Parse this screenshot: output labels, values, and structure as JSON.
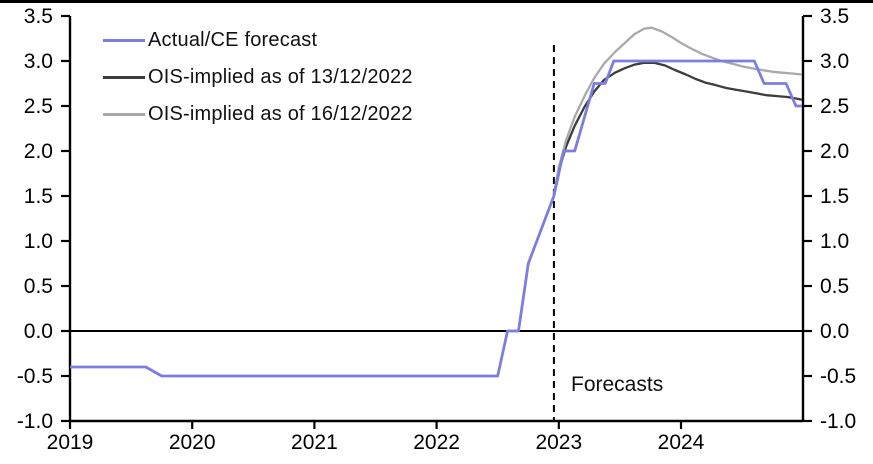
{
  "chart_data": {
    "type": "line",
    "title": "",
    "x_axis": {
      "ticks": [
        "2019",
        "2020",
        "2021",
        "2022",
        "2023",
        "2024"
      ],
      "range": [
        2019,
        2025
      ],
      "grid": false
    },
    "y_axis_left": {
      "ticks": [
        3.5,
        3.0,
        2.5,
        2.0,
        1.5,
        1.0,
        0.5,
        0.0,
        -0.5,
        -1.0
      ],
      "range": [
        -1.0,
        3.5
      ]
    },
    "y_axis_right": {
      "ticks": [
        3.5,
        3.0,
        2.5,
        2.0,
        1.5,
        1.0,
        0.5,
        0.0,
        -0.5,
        -1.0
      ],
      "range": [
        -1.0,
        3.5
      ]
    },
    "legend_position": "top-left",
    "axis_color": "#000000",
    "zero_line": 0.0,
    "series": [
      {
        "name": "Actual/CE forecast",
        "color": "#7d7de1",
        "points": [
          [
            2019.0,
            -0.4
          ],
          [
            2019.62,
            -0.4
          ],
          [
            2019.75,
            -0.5
          ],
          [
            2022.5,
            -0.5
          ],
          [
            2022.58,
            0.0
          ],
          [
            2022.67,
            0.0
          ],
          [
            2022.75,
            0.75
          ],
          [
            2022.96,
            1.5
          ],
          [
            2023.04,
            2.0
          ],
          [
            2023.13,
            2.0
          ],
          [
            2023.29,
            2.75
          ],
          [
            2023.38,
            2.75
          ],
          [
            2023.45,
            3.0
          ],
          [
            2024.6,
            3.0
          ],
          [
            2024.68,
            2.75
          ],
          [
            2024.86,
            2.75
          ],
          [
            2024.94,
            2.5
          ],
          [
            2024.99,
            2.5
          ]
        ]
      },
      {
        "name": "OIS-implied as of 13/12/2022",
        "color": "#3d3d3d",
        "points": [
          [
            2022.96,
            1.52
          ],
          [
            2023.0,
            1.78
          ],
          [
            2023.06,
            2.05
          ],
          [
            2023.13,
            2.28
          ],
          [
            2023.21,
            2.49
          ],
          [
            2023.29,
            2.66
          ],
          [
            2023.37,
            2.79
          ],
          [
            2023.46,
            2.87
          ],
          [
            2023.54,
            2.92
          ],
          [
            2023.62,
            2.96
          ],
          [
            2023.7,
            2.98
          ],
          [
            2023.78,
            2.98
          ],
          [
            2023.87,
            2.95
          ],
          [
            2023.95,
            2.9
          ],
          [
            2024.04,
            2.85
          ],
          [
            2024.12,
            2.8
          ],
          [
            2024.2,
            2.76
          ],
          [
            2024.29,
            2.73
          ],
          [
            2024.37,
            2.7
          ],
          [
            2024.45,
            2.68
          ],
          [
            2024.54,
            2.66
          ],
          [
            2024.62,
            2.64
          ],
          [
            2024.7,
            2.62
          ],
          [
            2024.79,
            2.61
          ],
          [
            2024.87,
            2.6
          ],
          [
            2024.95,
            2.58
          ],
          [
            2024.99,
            2.57
          ]
        ]
      },
      {
        "name": "OIS-implied as of 16/12/2022",
        "color": "#a9a9a9",
        "points": [
          [
            2022.96,
            1.52
          ],
          [
            2023.0,
            1.82
          ],
          [
            2023.06,
            2.12
          ],
          [
            2023.13,
            2.38
          ],
          [
            2023.21,
            2.61
          ],
          [
            2023.29,
            2.81
          ],
          [
            2023.37,
            2.97
          ],
          [
            2023.46,
            3.1
          ],
          [
            2023.54,
            3.2
          ],
          [
            2023.62,
            3.3
          ],
          [
            2023.7,
            3.36
          ],
          [
            2023.76,
            3.37
          ],
          [
            2023.84,
            3.33
          ],
          [
            2023.92,
            3.27
          ],
          [
            2024.0,
            3.2
          ],
          [
            2024.08,
            3.14
          ],
          [
            2024.17,
            3.08
          ],
          [
            2024.25,
            3.04
          ],
          [
            2024.33,
            3.0
          ],
          [
            2024.42,
            2.97
          ],
          [
            2024.5,
            2.94
          ],
          [
            2024.58,
            2.92
          ],
          [
            2024.66,
            2.9
          ],
          [
            2024.75,
            2.88
          ],
          [
            2024.83,
            2.87
          ],
          [
            2024.92,
            2.86
          ],
          [
            2024.99,
            2.85
          ]
        ]
      }
    ],
    "annotations": {
      "forecast_divider_x": 2022.96,
      "forecast_label": "Forecasts"
    }
  }
}
